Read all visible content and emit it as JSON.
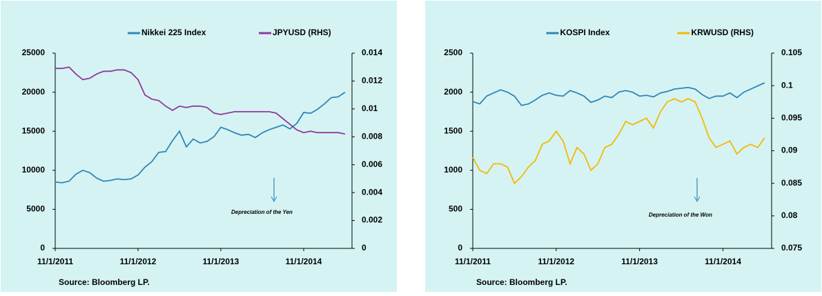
{
  "chart_data": [
    {
      "type": "line",
      "x": [
        "11/1/2011",
        null,
        null,
        null,
        null,
        null,
        null,
        null,
        null,
        null,
        null,
        null,
        "11/1/2012",
        null,
        null,
        null,
        null,
        null,
        null,
        null,
        null,
        null,
        null,
        null,
        "11/1/2013",
        null,
        null,
        null,
        null,
        null,
        null,
        null,
        null,
        null,
        null,
        null,
        "11/1/2014",
        null,
        null,
        null,
        null,
        null,
        null
      ],
      "ylim": [
        0,
        25000
      ],
      "yticks": [
        0,
        5000,
        10000,
        15000,
        20000,
        25000
      ],
      "y2lim": [
        0,
        0.014
      ],
      "y2ticks": [
        0,
        0.002,
        0.004,
        0.006,
        0.008,
        0.01,
        0.012,
        0.014
      ],
      "series": [
        {
          "name": "Nikkei 225 Index",
          "color": "#2e86b8",
          "values": [
            8500,
            8400,
            8600,
            9500,
            10000,
            9700,
            9000,
            8600,
            8700,
            8900,
            8800,
            8900,
            9400,
            10400,
            11100,
            12300,
            12400,
            13800,
            15000,
            13000,
            14000,
            13500,
            13700,
            14300,
            15500,
            15200,
            14800,
            14500,
            14600,
            14200,
            14800,
            15200,
            15500,
            15800,
            15300,
            16000,
            17400,
            17300,
            17800,
            18500,
            19300,
            19400,
            20000
          ]
        },
        {
          "name": "JPYUSD (RHS)",
          "color": "#8e3a9d",
          "axis": "y2",
          "values": [
            0.0129,
            0.0129,
            0.013,
            0.0125,
            0.0121,
            0.0122,
            0.0125,
            0.0127,
            0.0127,
            0.0128,
            0.0128,
            0.0126,
            0.0121,
            0.011,
            0.0107,
            0.0106,
            0.0102,
            0.0099,
            0.0102,
            0.0101,
            0.0102,
            0.0102,
            0.0101,
            0.0097,
            0.0096,
            0.0097,
            0.0098,
            0.0098,
            0.0098,
            0.0098,
            0.0098,
            0.0098,
            0.0097,
            0.0093,
            0.0089,
            0.0085,
            0.0083,
            0.0084,
            0.0083,
            0.0083,
            0.0083,
            0.0083,
            0.0082
          ]
        }
      ],
      "annotation": "Depreciation of the Yen",
      "source": "Source: Bloomberg LP."
    },
    {
      "type": "line",
      "x": [
        "11/1/2011",
        null,
        null,
        null,
        null,
        null,
        null,
        null,
        null,
        null,
        null,
        null,
        "11/1/2012",
        null,
        null,
        null,
        null,
        null,
        null,
        null,
        null,
        null,
        null,
        null,
        "11/1/2013",
        null,
        null,
        null,
        null,
        null,
        null,
        null,
        null,
        null,
        null,
        null,
        "11/1/2014",
        null,
        null,
        null,
        null,
        null,
        null
      ],
      "ylim": [
        0,
        2500
      ],
      "yticks": [
        0,
        500,
        1000,
        1500,
        2000,
        2500
      ],
      "y2lim": [
        0.075,
        0.105
      ],
      "y2ticks": [
        0.075,
        0.08,
        0.085,
        0.09,
        0.095,
        0.1,
        0.105
      ],
      "series": [
        {
          "name": "KOSPI Index",
          "color": "#2e86b8",
          "values": [
            1880,
            1850,
            1950,
            1990,
            2030,
            2000,
            1950,
            1830,
            1850,
            1900,
            1960,
            1990,
            1960,
            1950,
            2020,
            1990,
            1950,
            1870,
            1900,
            1950,
            1930,
            2000,
            2020,
            2000,
            1950,
            1960,
            1940,
            1990,
            2010,
            2040,
            2050,
            2060,
            2040,
            1970,
            1920,
            1950,
            1950,
            1990,
            1930,
            2000,
            2040,
            2080,
            2120
          ]
        },
        {
          "name": "KRWUSD (RHS)",
          "color": "#f5b800",
          "axis": "y2",
          "values": [
            0.089,
            0.087,
            0.0865,
            0.088,
            0.088,
            0.0875,
            0.085,
            0.086,
            0.0875,
            0.0885,
            0.091,
            0.0915,
            0.093,
            0.0915,
            0.088,
            0.0905,
            0.0895,
            0.087,
            0.088,
            0.0905,
            0.091,
            0.0925,
            0.0945,
            0.094,
            0.0945,
            0.095,
            0.0935,
            0.096,
            0.0975,
            0.098,
            0.0975,
            0.098,
            0.0975,
            0.095,
            0.092,
            0.0905,
            0.091,
            0.0915,
            0.0895,
            0.0905,
            0.091,
            0.0905,
            0.092
          ]
        }
      ],
      "annotation": "Depreciation of the Won",
      "source": "Source: Bloomberg LP."
    }
  ]
}
